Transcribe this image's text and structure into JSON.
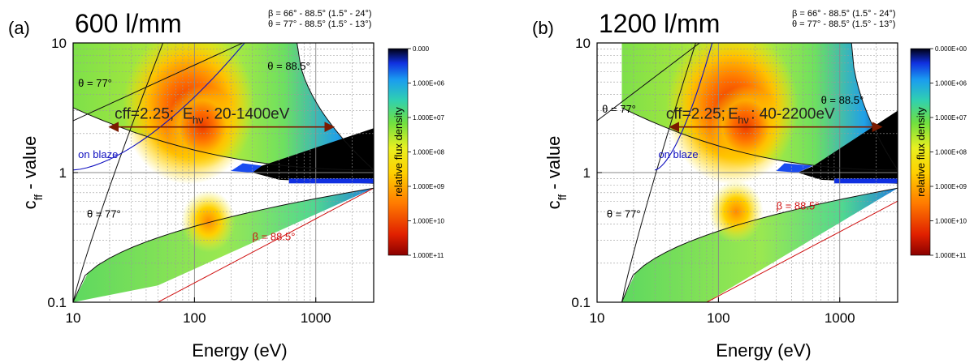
{
  "chart_data": [
    {
      "type": "heatmap",
      "panel_label": "(a)",
      "title": "600 l/mm",
      "angle_notes": [
        "β = 66°    - 88.5°  (1.5° -  24°)",
        "θ = 77° - 88.5°  (1.5° - 13°)"
      ],
      "xlabel": "Energy (eV)",
      "ylabel_main": "c",
      "ylabel_sub": "ff",
      "ylabel_suffix": " - value",
      "x_scale": "log",
      "y_scale": "log",
      "xlim": [
        10,
        3000
      ],
      "ylim": [
        0.1,
        10
      ],
      "x_ticks": [
        "10",
        "100",
        "1000"
      ],
      "y_ticks": [
        "0.1",
        "1",
        "10"
      ],
      "colorbar_label": "relative flux density",
      "colorbar_ticks": [
        "0.000",
        "1.000E+06",
        "1.000E+07",
        "1.000E+08",
        "1.000E+09",
        "1.000E+10",
        "1.000E+11"
      ],
      "hotspots": [
        {
          "x": 90,
          "y": 3.0,
          "level": 1.0
        },
        {
          "x": 130,
          "y": 0.42,
          "level": 0.55
        }
      ],
      "theta_label": "θ = 77°",
      "theta_label_lower": "θ = 77°",
      "theta_max_label": "θ =  88.5°",
      "beta_label": "β =  88.5°",
      "blaze_label": "on blaze",
      "cff_label": "cff=2.25;",
      "energy_range_prefix": "E",
      "energy_range_sub": "hν",
      "energy_range_label": ": 20-1400eV",
      "cff_value": 2.25,
      "energy_range": [
        20,
        1400
      ],
      "grid": true
    },
    {
      "type": "heatmap",
      "panel_label": "(b)",
      "title": "1200 l/mm",
      "angle_notes": [
        "β = 66°    - 88.5°  (1.5° -  24°)",
        "θ = 77° - 88.5°  (1.5° - 13°)"
      ],
      "xlabel": "Energy (eV)",
      "ylabel_main": "c",
      "ylabel_sub": "ff",
      "ylabel_suffix": " - value",
      "x_scale": "log",
      "y_scale": "log",
      "xlim": [
        10,
        3000
      ],
      "ylim": [
        0.1,
        10
      ],
      "x_ticks": [
        "10",
        "100",
        "1000"
      ],
      "y_ticks": [
        "0.1",
        "1",
        "10"
      ],
      "colorbar_label": "relative flux density",
      "colorbar_ticks": [
        "0.000E+00",
        "1.000E+06",
        "1.000E+07",
        "1.000E+08",
        "1.000E+09",
        "1.000E+10",
        "1.000E+11"
      ],
      "hotspots": [
        {
          "x": 130,
          "y": 3.0,
          "level": 1.0
        },
        {
          "x": 140,
          "y": 0.5,
          "level": 0.6
        }
      ],
      "theta_label": "θ = 77°",
      "theta_label_lower": "θ = 77°",
      "theta_max_label": "θ =  88.5°",
      "beta_label": "β =  88.5°",
      "blaze_label": "on blaze",
      "cff_label": "cff=2.25;",
      "energy_range_prefix": "E",
      "energy_range_sub": "hν",
      "energy_range_label": ": 40-2200eV",
      "cff_value": 2.25,
      "energy_range": [
        40,
        2200
      ],
      "grid": true
    }
  ],
  "colors": {
    "theta_curve": "#111111",
    "blaze_curve": "#1010c0",
    "beta_curve": "#d01010",
    "arrow": "#7a1a00",
    "grid": "#9a9a9a"
  }
}
